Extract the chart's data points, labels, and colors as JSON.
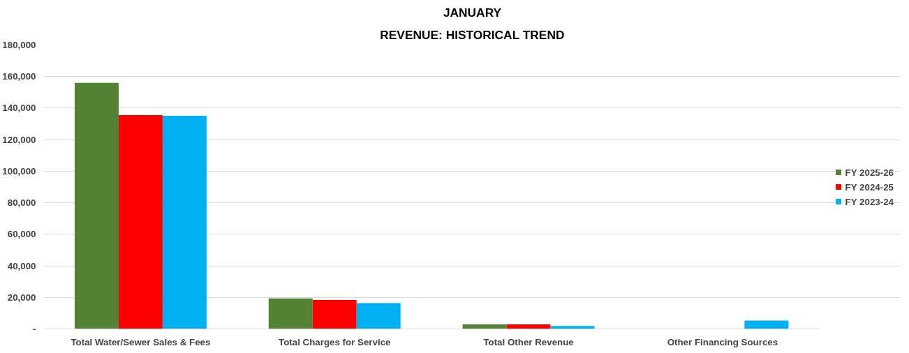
{
  "chart_data": {
    "type": "bar",
    "title": "JANUARY",
    "subtitle": "REVENUE: HISTORICAL TREND",
    "categories": [
      "Total Water/Sewer Sales & Fees",
      "Total Charges for Service",
      "Total Other Revenue",
      "Other Financing Sources"
    ],
    "series": [
      {
        "name": "FY 2025-26",
        "color": "#548235",
        "values": [
          156000,
          19300,
          2900,
          0
        ]
      },
      {
        "name": "FY 2024-25",
        "color": "#ff0000",
        "values": [
          135600,
          18300,
          2900,
          0
        ]
      },
      {
        "name": "FY 2023-24",
        "color": "#00b0f0",
        "values": [
          135100,
          16400,
          1900,
          5300
        ]
      }
    ],
    "ylim": [
      0,
      180000
    ],
    "yticks": [
      {
        "value": 0,
        "label": "-"
      },
      {
        "value": 20000,
        "label": "20,000"
      },
      {
        "value": 40000,
        "label": "40,000"
      },
      {
        "value": 60000,
        "label": "60,000"
      },
      {
        "value": 80000,
        "label": "80,000"
      },
      {
        "value": 100000,
        "label": "100,000"
      },
      {
        "value": 120000,
        "label": "120,000"
      },
      {
        "value": 140000,
        "label": "140,000"
      },
      {
        "value": 160000,
        "label": "160,000"
      },
      {
        "value": 180000,
        "label": "180,000"
      }
    ],
    "grid": "y",
    "legend": "right"
  }
}
